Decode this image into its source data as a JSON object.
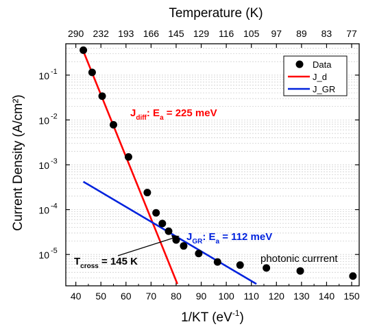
{
  "chart_data": {
    "type": "scatter",
    "title": "",
    "xlabel": "1/KT (eV",
    "xlabel_sup": "-1",
    "xlabel_tail": ")",
    "ylabel": "Current Density (A/cm²)",
    "top_axis_label": "Temperature (K)",
    "xlim": [
      36,
      153
    ],
    "ylim": [
      2e-06,
      0.5
    ],
    "yscale": "log",
    "grid": "horizontal minor, dotted",
    "legend_position": "top-right",
    "x_ticks": [
      40,
      50,
      60,
      70,
      80,
      90,
      100,
      110,
      120,
      130,
      140,
      150
    ],
    "x_tick_labels": [
      "40",
      "50",
      "60",
      "70",
      "80",
      "90",
      "100",
      "110",
      "120",
      "130",
      "140",
      "150"
    ],
    "y_ticks": [
      1e-05,
      0.0001,
      0.001,
      0.01,
      0.1
    ],
    "y_tick_bases": [
      "10",
      "10",
      "10",
      "10",
      "10"
    ],
    "y_tick_exponents": [
      "-5",
      "-4",
      "-3",
      "-2",
      "-1"
    ],
    "top_ticks": [
      {
        "x": 40,
        "label": "290"
      },
      {
        "x": 50,
        "label": "232"
      },
      {
        "x": 60,
        "label": "193"
      },
      {
        "x": 70,
        "label": "166"
      },
      {
        "x": 80,
        "label": "145"
      },
      {
        "x": 90,
        "label": "129"
      },
      {
        "x": 100,
        "label": "116"
      },
      {
        "x": 110,
        "label": "105"
      },
      {
        "x": 120,
        "label": "97"
      },
      {
        "x": 130,
        "label": "89"
      },
      {
        "x": 140,
        "label": "83"
      },
      {
        "x": 150,
        "label": "77"
      }
    ],
    "series": [
      {
        "name": "Data",
        "kind": "scatter",
        "color": "#000000",
        "x": [
          43,
          46.5,
          50.5,
          55,
          61,
          68.5,
          72,
          74.5,
          77,
          80,
          83,
          89,
          96.5,
          105.5,
          116,
          129.5,
          150.5
        ],
        "y": [
          0.36,
          0.115,
          0.034,
          0.0078,
          0.0015,
          0.00024,
          8.5e-05,
          4.9e-05,
          3.3e-05,
          2.1e-05,
          1.55e-05,
          1.05e-05,
          6.8e-06,
          5.8e-06,
          5e-06,
          4.3e-06,
          3.3e-06
        ]
      },
      {
        "name": "J_d",
        "kind": "line",
        "color": "#ff0000",
        "x": [
          42.5,
          80.5
        ],
        "y": [
          0.4,
          2.2e-06
        ]
      },
      {
        "name": "J_GR",
        "kind": "line",
        "color": "#0022dd",
        "x": [
          43,
          112
        ],
        "y": [
          0.00042,
          2.2e-06
        ]
      }
    ],
    "annotations": [
      {
        "id": "jdiff",
        "main": "J",
        "sub": "diff",
        "mid": ": E",
        "sub2": "a",
        "tail": " = 225 meV",
        "color": "#ff0000"
      },
      {
        "id": "jgr",
        "main": "J",
        "sub": "GR",
        "mid": ": E",
        "sub2": "a",
        "tail": " = 112 meV",
        "color": "#0022dd"
      },
      {
        "id": "tcross",
        "main": "T",
        "sub": "cross",
        "tail": " = 145 K",
        "color": "#000000"
      },
      {
        "id": "photonic",
        "text": "photonic currrent",
        "color": "#000000"
      }
    ]
  }
}
